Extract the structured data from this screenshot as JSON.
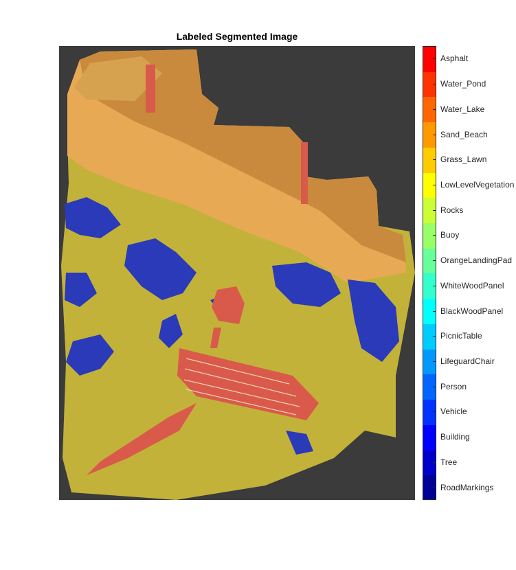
{
  "title": "Labeled Segmented Image",
  "image": {
    "description_icon": "segmentation-map",
    "background_color": "#3b3b3b"
  },
  "colorbar": {
    "classes": [
      {
        "label": "Asphalt",
        "color": "#ff0000"
      },
      {
        "label": "Water_Pond",
        "color": "#ff3300"
      },
      {
        "label": "Water_Lake",
        "color": "#ff6600"
      },
      {
        "label": "Sand_Beach",
        "color": "#ff9900"
      },
      {
        "label": "Grass_Lawn",
        "color": "#ffcc00"
      },
      {
        "label": "LowLevelVegetation",
        "color": "#ffff00"
      },
      {
        "label": "Rocks",
        "color": "#ccff33"
      },
      {
        "label": "Buoy",
        "color": "#99ff66"
      },
      {
        "label": "OrangeLandingPad",
        "color": "#66ff99"
      },
      {
        "label": "WhiteWoodPanel",
        "color": "#33ffcc"
      },
      {
        "label": "BlackWoodPanel",
        "color": "#00ffff"
      },
      {
        "label": "PicnicTable",
        "color": "#00ccff"
      },
      {
        "label": "LifeguardChair",
        "color": "#0099ff"
      },
      {
        "label": "Person",
        "color": "#0066ff"
      },
      {
        "label": "Vehicle",
        "color": "#0033ff"
      },
      {
        "label": "Building",
        "color": "#0000ff"
      },
      {
        "label": "Tree",
        "color": "#0000cc"
      },
      {
        "label": "RoadMarkings",
        "color": "#000099"
      }
    ]
  }
}
